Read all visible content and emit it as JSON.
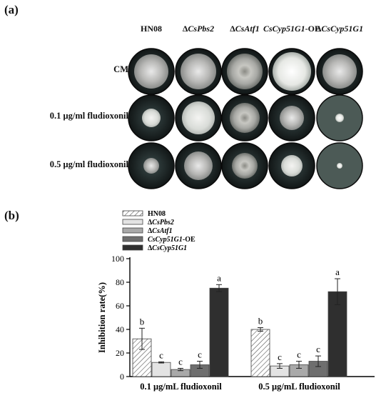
{
  "panel_a": {
    "label": "(a)",
    "strains": [
      {
        "prefix": "",
        "italic": "",
        "text": "HN08",
        "suffix": ""
      },
      {
        "prefix": "Δ",
        "italic": "CsPbs2",
        "text": "",
        "suffix": ""
      },
      {
        "prefix": "Δ",
        "italic": "CsAtf1",
        "text": "",
        "suffix": ""
      },
      {
        "prefix": "",
        "italic": "CsCyp51G1",
        "text": "",
        "suffix": "-OE"
      },
      {
        "prefix": "Δ",
        "italic": "CsCyp51G1",
        "text": "",
        "suffix": ""
      }
    ],
    "conditions": [
      "CM",
      "0.1 μg/ml fludioxonil",
      "0.5 μg/ml fludioxonil"
    ]
  },
  "panel_b_label": "(b)",
  "chart_data": {
    "type": "bar",
    "categories": [
      "0.1 μg/mL fludioxonil",
      "0.5 μg/mL fludioxonil"
    ],
    "ylabel": "Inhibition rate(%)",
    "ylim": [
      0,
      100
    ],
    "yticks": [
      0,
      20,
      40,
      60,
      80,
      100
    ],
    "legend_position": "top-left",
    "series": [
      {
        "name": "HN08",
        "prefix": "",
        "italic": "",
        "suffix": "",
        "color": "#ffffff",
        "pattern": "hatch",
        "values": [
          32,
          40
        ],
        "errors": [
          9,
          1.5
        ],
        "letters": [
          "b",
          "b"
        ]
      },
      {
        "name": "ΔCsPbs2",
        "prefix": "Δ",
        "italic": "CsPbs2",
        "suffix": "",
        "color": "#e3e3e3",
        "values": [
          12,
          9
        ],
        "errors": [
          0.5,
          2
        ],
        "letters": [
          "c",
          "c"
        ]
      },
      {
        "name": "ΔCsAtf1",
        "prefix": "Δ",
        "italic": "CsAtf1",
        "suffix": "",
        "color": "#a9a9a9",
        "values": [
          6,
          10
        ],
        "errors": [
          1,
          3
        ],
        "letters": [
          "c",
          "c"
        ]
      },
      {
        "name": "CsCyp51G1-OE",
        "prefix": "",
        "italic": "CsCyp51G1",
        "suffix": "-OE",
        "color": "#6e6e6e",
        "values": [
          10,
          13
        ],
        "errors": [
          3,
          4.5
        ],
        "letters": [
          "c",
          "c"
        ]
      },
      {
        "name": "ΔCsCyp51G1",
        "prefix": "Δ",
        "italic": "CsCyp51G1",
        "suffix": "",
        "color": "#2f2f2f",
        "values": [
          75,
          72
        ],
        "errors": [
          3,
          11
        ],
        "letters": [
          "a",
          "a"
        ]
      }
    ]
  }
}
